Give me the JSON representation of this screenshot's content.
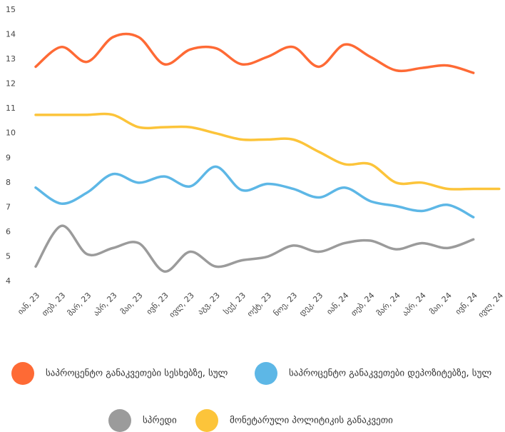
{
  "chart_data": {
    "type": "line",
    "categories": [
      "იან, 23",
      "თებ, 23",
      "მარ, 23",
      "აპრ, 23",
      "მაი, 23",
      "ივნ, 23",
      "ივლ, 23",
      "აგვ, 23",
      "სექ, 23",
      "ოქტ, 23",
      "ნოე, 23",
      "დეკ, 23",
      "იან, 24",
      "თებ, 24",
      "მარ, 24",
      "აპრ, 24",
      "მაი, 24",
      "ივნ, 24",
      "ივლ, 24"
    ],
    "series": [
      {
        "name": "საპროცენტო განაკვეთები სესხებზე, სულ",
        "color": "#fe6a35",
        "values": [
          12.7,
          13.5,
          12.9,
          13.9,
          13.9,
          12.8,
          13.4,
          13.45,
          12.8,
          13.1,
          13.5,
          12.7,
          13.6,
          13.1,
          12.55,
          12.65,
          12.75,
          12.45,
          null
        ]
      },
      {
        "name": "საპროცენტო განაკვეთები დეპოზიტებზე, სულ",
        "color": "#5db7e6",
        "values": [
          7.8,
          7.15,
          7.6,
          8.35,
          8.0,
          8.25,
          7.85,
          8.65,
          7.7,
          7.95,
          7.75,
          7.4,
          7.8,
          7.25,
          7.05,
          6.85,
          7.1,
          6.6,
          null
        ]
      },
      {
        "name": "სპრედი",
        "color": "#9b9b9b",
        "values": [
          4.6,
          6.25,
          5.1,
          5.35,
          5.55,
          4.4,
          5.2,
          4.6,
          4.85,
          5.0,
          5.45,
          5.2,
          5.55,
          5.65,
          5.3,
          5.55,
          5.35,
          5.7,
          null
        ]
      },
      {
        "name": "მონეტარული პოლიტიკის განაკვეთი",
        "color": "#fcc43a",
        "values": [
          10.75,
          10.75,
          10.75,
          10.75,
          10.25,
          10.25,
          10.25,
          10.0,
          9.75,
          9.75,
          9.75,
          9.25,
          8.75,
          8.75,
          8.0,
          8.0,
          7.75,
          7.75,
          7.75
        ]
      }
    ],
    "ylim": [
      4,
      15
    ],
    "yticks": [
      4,
      5,
      6,
      7,
      8,
      9,
      10,
      11,
      12,
      13,
      14,
      15
    ],
    "grid": false
  }
}
